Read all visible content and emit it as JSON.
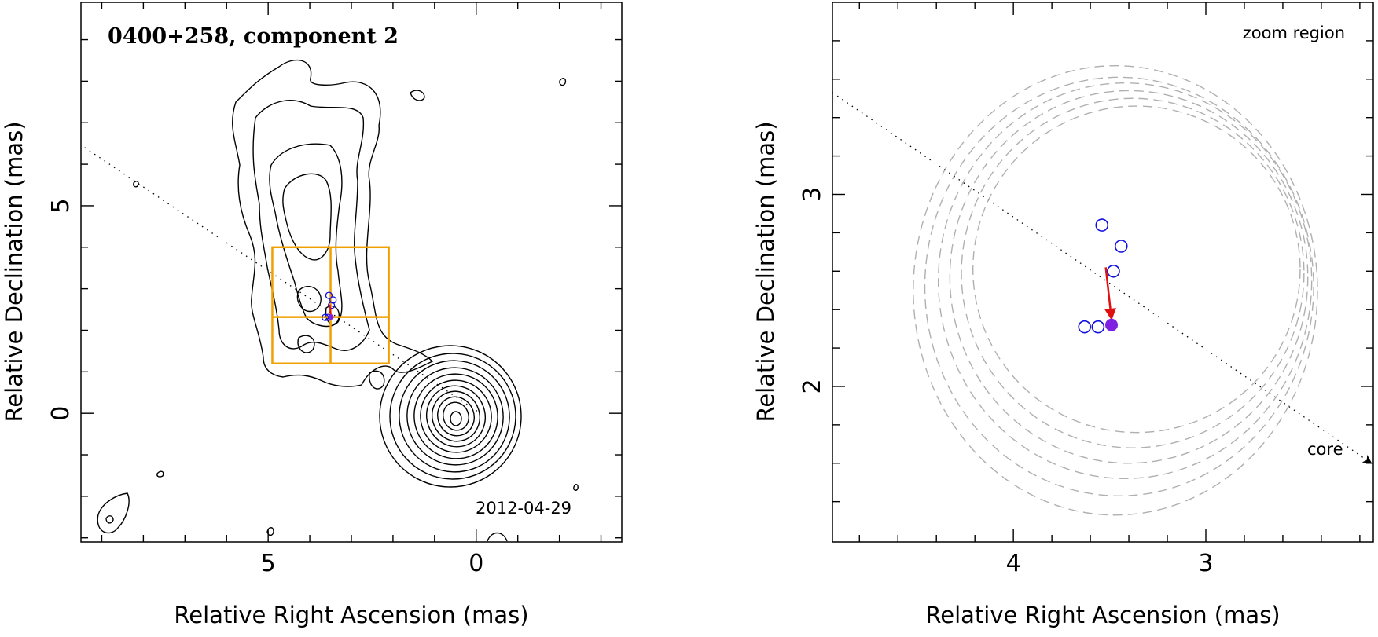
{
  "chart_data": [
    {
      "type": "contour",
      "title": "0400+258, component 2",
      "xlabel": "Relative Right Ascension (mas)",
      "ylabel": "Relative Declination (mas)",
      "xlim": [
        9.5,
        -3.5
      ],
      "ylim": [
        -3.1,
        9.9
      ],
      "x_ticks": [
        5,
        0
      ],
      "y_ticks": [
        5,
        0
      ],
      "x_ticks_minor": [
        9,
        8,
        7,
        6,
        5,
        4,
        3,
        2,
        1,
        0,
        -1,
        -2,
        -3
      ],
      "y_ticks_minor": [
        -3,
        -2,
        -1,
        0,
        1,
        2,
        3,
        4,
        5,
        6,
        7,
        8,
        9
      ],
      "date_label": "2012-04-29",
      "jet_axis": [
        [
          10.0,
          6.8
        ],
        [
          -0.1,
          0.0
        ]
      ],
      "zoom_box": {
        "x": [
          4.9,
          2.1
        ],
        "y": [
          1.2,
          4.0
        ],
        "x_cross": 3.5,
        "y_cross": 2.32
      },
      "core_center": [
        0.65,
        0.0
      ],
      "component_points": [
        {
          "x": 3.54,
          "y": 2.84
        },
        {
          "x": 3.44,
          "y": 2.73
        },
        {
          "x": 3.48,
          "y": 2.6
        },
        {
          "x": 3.63,
          "y": 2.31
        },
        {
          "x": 3.56,
          "y": 2.31
        }
      ],
      "filled_point": {
        "x": 3.49,
        "y": 2.32
      }
    },
    {
      "type": "scatter",
      "title": "zoom region",
      "xlabel": "Relative Right Ascension (mas)",
      "ylabel": "Relative Declination (mas)",
      "xlim": [
        4.94,
        2.13
      ],
      "ylim": [
        1.19,
        4.0
      ],
      "x_ticks": [
        4,
        3
      ],
      "y_ticks": [
        3,
        2
      ],
      "x_ticks_minor": [
        4.8,
        4.6,
        4.4,
        4.2,
        4.0,
        3.8,
        3.6,
        3.4,
        3.2,
        3.0,
        2.8,
        2.6,
        2.4,
        2.2
      ],
      "y_ticks_minor": [
        1.4,
        1.6,
        1.8,
        2.0,
        2.2,
        2.4,
        2.6,
        2.8,
        3.0,
        3.2,
        3.4,
        3.6,
        3.8
      ],
      "open_points": [
        {
          "x": 3.54,
          "y": 2.84
        },
        {
          "x": 3.44,
          "y": 2.73
        },
        {
          "x": 3.48,
          "y": 2.6
        },
        {
          "x": 3.63,
          "y": 2.31
        },
        {
          "x": 3.56,
          "y": 2.31
        }
      ],
      "filled_point": {
        "x": 3.49,
        "y": 2.32
      },
      "arrow": {
        "from": [
          3.52,
          2.62
        ],
        "to": [
          3.49,
          2.35
        ]
      },
      "jet_axis": [
        [
          4.94,
          3.53
        ],
        [
          2.14,
          1.6
        ]
      ],
      "core_label": "core",
      "beam_ellipses": [
        {
          "cx": 3.47,
          "cy": 2.5,
          "rx": 1.05,
          "ry": 1.17
        },
        {
          "cx": 3.45,
          "cy": 2.52,
          "rx": 1.01,
          "ry": 1.09
        },
        {
          "cx": 3.42,
          "cy": 2.55,
          "rx": 0.97,
          "ry": 1.03
        },
        {
          "cx": 3.4,
          "cy": 2.57,
          "rx": 0.93,
          "ry": 0.97
        },
        {
          "cx": 3.38,
          "cy": 2.59,
          "rx": 0.89,
          "ry": 0.91
        },
        {
          "cx": 3.36,
          "cy": 2.61,
          "rx": 0.85,
          "ry": 0.85
        }
      ]
    }
  ],
  "colors": {
    "contour": "#000000",
    "zoom_box": "#f0a000",
    "open_point": "#1010e0",
    "filled_point": "#8020e0",
    "arrow": "#e01010",
    "beam": "#b0b0b0",
    "jet_axis": "#000000"
  }
}
